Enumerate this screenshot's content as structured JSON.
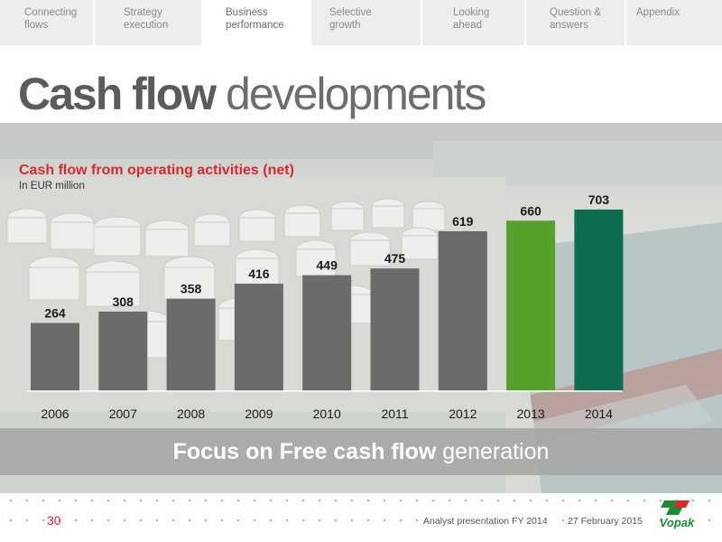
{
  "nav": {
    "tabs": [
      {
        "line1": "Connecting",
        "line2": "flows",
        "active": false
      },
      {
        "line1": "Strategy",
        "line2": "execution",
        "active": false
      },
      {
        "line1": "Business",
        "line2": "performance",
        "active": true
      },
      {
        "line1": "Selective",
        "line2": "growth",
        "active": false
      },
      {
        "line1": "Looking",
        "line2": "ahead",
        "active": false
      },
      {
        "line1": "Question &",
        "line2": "answers",
        "active": false
      },
      {
        "line1": "Appendix",
        "line2": "",
        "active": false
      }
    ]
  },
  "slide": {
    "title_bold": "Cash flow",
    "title_light": "developments"
  },
  "chart_data": {
    "type": "bar",
    "title": "Cash flow from operating activities (net)",
    "subtitle": "In EUR million",
    "categories": [
      "2006",
      "2007",
      "2008",
      "2009",
      "2010",
      "2011",
      "2012",
      "2013",
      "2014"
    ],
    "values": [
      264,
      308,
      358,
      416,
      449,
      475,
      619,
      660,
      703
    ],
    "bar_colors": [
      "#6b6b6b",
      "#6b6b6b",
      "#6b6b6b",
      "#6b6b6b",
      "#6b6b6b",
      "#6b6b6b",
      "#6b6b6b",
      "#56a02b",
      "#0f6b52"
    ],
    "ylim": [
      0,
      703
    ],
    "data_labels": true,
    "grid": false,
    "legend": "none"
  },
  "banner": {
    "bold": "Focus on Free cash flow",
    "light": " generation"
  },
  "footer": {
    "page_number": "30",
    "presentation": "Analyst presentation FY 2014",
    "date": "27 February 2015",
    "logo_text": "Vopak"
  },
  "colors": {
    "accent_red": "#d62b2b",
    "bar_gray": "#6b6b6b",
    "bar_green": "#56a02b",
    "bar_dark_green": "#0f6b52",
    "logo_green": "#1e8a3a"
  }
}
